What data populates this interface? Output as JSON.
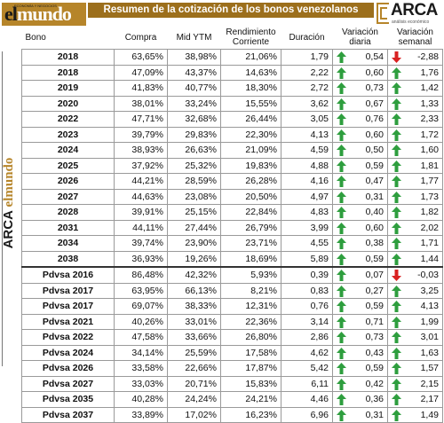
{
  "header": {
    "logo_left_prefix": "el",
    "logo_left_suffix": "mundo",
    "logo_left_tagline": "ECONOMÍA Y NEGOCIOS",
    "title": "Resumen de la cotización de los bonos venezolanos",
    "logo_right_name": "ARCA",
    "logo_right_sub": "análisis económico"
  },
  "side_brand": {
    "name": "ARCA",
    "media_prefix": "el",
    "media_suffix": "mundo"
  },
  "columns": [
    "Bono",
    "Compra",
    "Mid YTM",
    "Rendimiento Corriente",
    "Duración",
    "Variación diaria",
    "Variación semanal"
  ],
  "colors": {
    "up": "#2e9e3e",
    "down": "#d92121",
    "title_bg": "#9c6f1c",
    "logo_gold": "#b6852a"
  },
  "rows": [
    {
      "bono": "2018",
      "compra": "63,65%",
      "ytm": "38,98%",
      "rend": "21,06%",
      "dur": "1,79",
      "vd": "0,54",
      "vd_dir": "up",
      "vs": "-2,88",
      "vs_dir": "down"
    },
    {
      "bono": "2018",
      "compra": "47,09%",
      "ytm": "43,37%",
      "rend": "14,63%",
      "dur": "2,22",
      "vd": "0,60",
      "vd_dir": "up",
      "vs": "1,76",
      "vs_dir": "up"
    },
    {
      "bono": "2019",
      "compra": "41,83%",
      "ytm": "40,77%",
      "rend": "18,30%",
      "dur": "2,72",
      "vd": "0,73",
      "vd_dir": "up",
      "vs": "1,42",
      "vs_dir": "up"
    },
    {
      "bono": "2020",
      "compra": "38,01%",
      "ytm": "33,24%",
      "rend": "15,55%",
      "dur": "3,62",
      "vd": "0,67",
      "vd_dir": "up",
      "vs": "1,33",
      "vs_dir": "up"
    },
    {
      "bono": "2022",
      "compra": "47,71%",
      "ytm": "32,68%",
      "rend": "26,44%",
      "dur": "3,05",
      "vd": "0,76",
      "vd_dir": "up",
      "vs": "2,33",
      "vs_dir": "up"
    },
    {
      "bono": "2023",
      "compra": "39,79%",
      "ytm": "29,83%",
      "rend": "22,30%",
      "dur": "4,13",
      "vd": "0,60",
      "vd_dir": "up",
      "vs": "1,72",
      "vs_dir": "up"
    },
    {
      "bono": "2024",
      "compra": "38,93%",
      "ytm": "26,63%",
      "rend": "21,09%",
      "dur": "4,59",
      "vd": "0,50",
      "vd_dir": "up",
      "vs": "1,60",
      "vs_dir": "up"
    },
    {
      "bono": "2025",
      "compra": "37,92%",
      "ytm": "25,32%",
      "rend": "19,83%",
      "dur": "4,88",
      "vd": "0,59",
      "vd_dir": "up",
      "vs": "1,81",
      "vs_dir": "up"
    },
    {
      "bono": "2026",
      "compra": "44,21%",
      "ytm": "28,59%",
      "rend": "26,28%",
      "dur": "4,16",
      "vd": "0,47",
      "vd_dir": "up",
      "vs": "1,77",
      "vs_dir": "up"
    },
    {
      "bono": "2027",
      "compra": "44,63%",
      "ytm": "23,08%",
      "rend": "20,50%",
      "dur": "4,97",
      "vd": "0,31",
      "vd_dir": "up",
      "vs": "1,73",
      "vs_dir": "up"
    },
    {
      "bono": "2028",
      "compra": "39,91%",
      "ytm": "25,15%",
      "rend": "22,84%",
      "dur": "4,83",
      "vd": "0,40",
      "vd_dir": "up",
      "vs": "1,82",
      "vs_dir": "up"
    },
    {
      "bono": "2031",
      "compra": "44,11%",
      "ytm": "27,44%",
      "rend": "26,79%",
      "dur": "3,99",
      "vd": "0,60",
      "vd_dir": "up",
      "vs": "2,02",
      "vs_dir": "up"
    },
    {
      "bono": "2034",
      "compra": "39,74%",
      "ytm": "23,90%",
      "rend": "23,71%",
      "dur": "4,55",
      "vd": "0,38",
      "vd_dir": "up",
      "vs": "1,71",
      "vs_dir": "up"
    },
    {
      "bono": "2038",
      "compra": "36,93%",
      "ytm": "19,26%",
      "rend": "18,69%",
      "dur": "5,89",
      "vd": "0,59",
      "vd_dir": "up",
      "vs": "1,44",
      "vs_dir": "up"
    },
    {
      "bono": "Pdvsa 2016",
      "compra": "86,48%",
      "ytm": "42,32%",
      "rend": "5,93%",
      "dur": "0,39",
      "vd": "0,07",
      "vd_dir": "up",
      "vs": "-0,03",
      "vs_dir": "down",
      "sep": true
    },
    {
      "bono": "Pdvsa 2017",
      "compra": "63,95%",
      "ytm": "66,13%",
      "rend": "8,21%",
      "dur": "0,83",
      "vd": "0,27",
      "vd_dir": "up",
      "vs": "3,25",
      "vs_dir": "up"
    },
    {
      "bono": "Pdvsa 2017",
      "compra": "69,07%",
      "ytm": "38,33%",
      "rend": "12,31%",
      "dur": "0,76",
      "vd": "0,59",
      "vd_dir": "up",
      "vs": "4,13",
      "vs_dir": "up"
    },
    {
      "bono": "Pdvsa 2021",
      "compra": "40,26%",
      "ytm": "33,01%",
      "rend": "22,36%",
      "dur": "3,14",
      "vd": "0,71",
      "vd_dir": "up",
      "vs": "1,99",
      "vs_dir": "up"
    },
    {
      "bono": "Pdvsa 2022",
      "compra": "47,58%",
      "ytm": "33,66%",
      "rend": "26,80%",
      "dur": "2,86",
      "vd": "0,73",
      "vd_dir": "up",
      "vs": "3,01",
      "vs_dir": "up"
    },
    {
      "bono": "Pdvsa 2024",
      "compra": "34,14%",
      "ytm": "25,59%",
      "rend": "17,58%",
      "dur": "4,62",
      "vd": "0,43",
      "vd_dir": "up",
      "vs": "1,63",
      "vs_dir": "up"
    },
    {
      "bono": "Pdvsa 2026",
      "compra": "33,58%",
      "ytm": "22,66%",
      "rend": "17,87%",
      "dur": "5,42",
      "vd": "0,59",
      "vd_dir": "up",
      "vs": "1,57",
      "vs_dir": "up"
    },
    {
      "bono": "Pdvsa 2027",
      "compra": "33,03%",
      "ytm": "20,71%",
      "rend": "15,83%",
      "dur": "6,11",
      "vd": "0,42",
      "vd_dir": "up",
      "vs": "2,15",
      "vs_dir": "up"
    },
    {
      "bono": "Pdvsa 2035",
      "compra": "40,28%",
      "ytm": "24,24%",
      "rend": "24,21%",
      "dur": "4,46",
      "vd": "0,36",
      "vd_dir": "up",
      "vs": "2,17",
      "vs_dir": "up"
    },
    {
      "bono": "Pdvsa 2037",
      "compra": "33,89%",
      "ytm": "17,02%",
      "rend": "16,23%",
      "dur": "6,96",
      "vd": "0,31",
      "vd_dir": "up",
      "vs": "1,49",
      "vs_dir": "up"
    }
  ]
}
